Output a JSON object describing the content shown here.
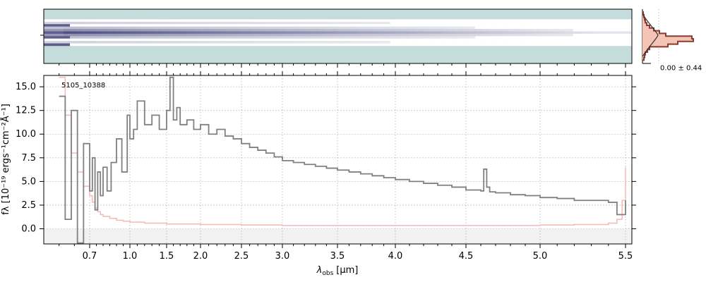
{
  "chart_data": [
    {
      "type": "heatmap",
      "panel": "spectrum-2d",
      "colormap": "bone-like (white to dark blue-black), teal background",
      "colors": {
        "background": "#c4dcdb",
        "trace": "#2b2d55"
      },
      "y_tick_mark": ""
    },
    {
      "type": "histogram",
      "panel": "residual-histogram",
      "stat_label": "0.00 ± 0.44",
      "colors": {
        "hist": "#8b3a30",
        "hist_fill": "#f4c5b5",
        "model": "#333333"
      }
    },
    {
      "type": "line",
      "panel": "spectrum-1d",
      "object_id": "5105_10388",
      "xlabel": "λobs [μm]",
      "xlabel_main": "λ",
      "xlabel_sub": "obs",
      "xlabel_unit": "[μm]",
      "ylabel": "fλ [10⁻¹⁹ ergs⁻¹cm⁻²Å⁻¹]",
      "x_scale": "non-linear (dispersion grid)",
      "x_ticks": [
        "0.7",
        "1.0",
        "1.5",
        "2.0",
        "2.5",
        "3.0",
        "3.5",
        "4.0",
        "4.5",
        "5.0",
        "5.5"
      ],
      "y_ticks": [
        "0.0",
        "2.5",
        "5.0",
        "7.5",
        "10.0",
        "12.5",
        "15.0"
      ],
      "ylim": [
        -1.6,
        16.2
      ],
      "grid": true,
      "series": [
        {
          "color": "#808080",
          "style": "steps",
          "x": [
            0.6,
            0.62,
            0.64,
            0.66,
            0.68,
            0.7,
            0.72,
            0.74,
            0.76,
            0.78,
            0.8,
            0.83,
            0.86,
            0.9,
            0.94,
            0.98,
            1.0,
            1.05,
            1.1,
            1.2,
            1.3,
            1.4,
            1.5,
            1.55,
            1.6,
            1.65,
            1.7,
            1.8,
            1.9,
            2.0,
            2.1,
            2.2,
            2.3,
            2.4,
            2.5,
            2.6,
            2.7,
            2.8,
            2.9,
            3.0,
            3.1,
            3.2,
            3.3,
            3.4,
            3.5,
            3.6,
            3.7,
            3.8,
            3.9,
            4.0,
            4.1,
            4.2,
            4.3,
            4.4,
            4.5,
            4.6,
            4.62,
            4.64,
            4.66,
            4.7,
            4.8,
            4.9,
            5.0,
            5.1,
            5.2,
            5.3,
            5.4,
            5.45,
            5.5
          ],
          "y": [
            14.0,
            1.0,
            12.5,
            -1.5,
            9.0,
            4.0,
            7.5,
            2.0,
            6.0,
            3.5,
            6.5,
            4.0,
            7.0,
            9.5,
            6.0,
            12.0,
            9.5,
            10.5,
            13.5,
            11.0,
            12.0,
            10.5,
            12.5,
            16.0,
            11.5,
            12.8,
            11.0,
            11.5,
            10.5,
            11.0,
            10.0,
            10.5,
            9.8,
            9.5,
            9.0,
            8.6,
            8.3,
            8.0,
            7.6,
            7.2,
            7.0,
            6.8,
            6.6,
            6.4,
            6.2,
            6.0,
            5.8,
            5.6,
            5.4,
            5.2,
            5.0,
            4.8,
            4.6,
            4.4,
            4.1,
            4.0,
            6.3,
            4.4,
            3.9,
            3.8,
            3.6,
            3.5,
            3.3,
            3.2,
            3.0,
            3.0,
            2.8,
            1.5,
            3.0
          ]
        },
        {
          "color": "#f4b8b8",
          "style": "steps",
          "x": [
            0.6,
            0.62,
            0.64,
            0.66,
            0.68,
            0.7,
            0.72,
            0.74,
            0.76,
            0.78,
            0.8,
            0.85,
            0.9,
            0.95,
            1.0,
            1.2,
            1.5,
            2.0,
            2.5,
            3.0,
            3.5,
            4.0,
            4.5,
            5.0,
            5.2,
            5.4,
            5.45,
            5.48,
            5.5
          ],
          "y": [
            16.0,
            12.0,
            8.0,
            6.0,
            4.5,
            3.5,
            2.8,
            2.2,
            1.8,
            1.5,
            1.3,
            1.1,
            0.9,
            0.8,
            0.7,
            0.6,
            0.5,
            0.45,
            0.4,
            0.35,
            0.35,
            0.35,
            0.35,
            0.4,
            0.45,
            0.6,
            1.0,
            3.0,
            6.5
          ]
        }
      ]
    }
  ]
}
